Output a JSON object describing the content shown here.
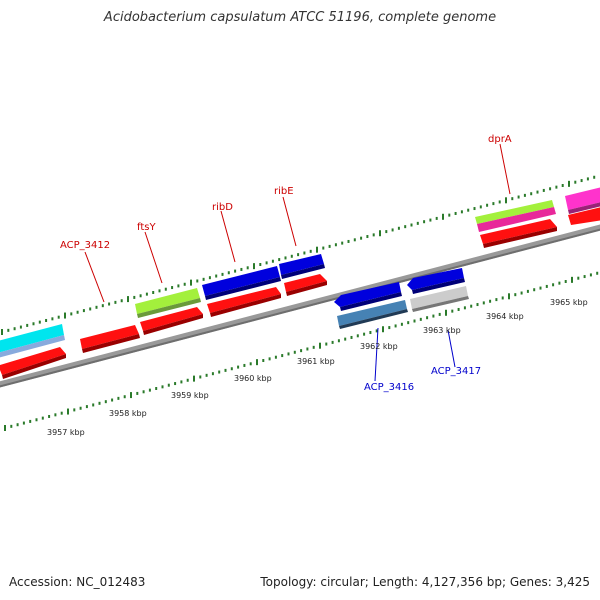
{
  "title": "Acidobacterium capsulatum ATCC 51196, complete genome",
  "footer": {
    "accession": "Accession: NC_012483",
    "summary": "Topology: circular; Length: 4,127,356 bp; Genes: 3,425"
  },
  "colors": {
    "forward_label": "#cc0000",
    "reverse_label": "#0000cc",
    "backbone": "#7a7a7a",
    "ticks": "#2a7a2a"
  },
  "scale_labels": [
    "3957 kbp",
    "3958 kbp",
    "3959 kbp",
    "3960 kbp",
    "3961 kbp",
    "3962 kbp",
    "3963 kbp",
    "3964 kbp",
    "3965 kbp"
  ],
  "gene_labels": [
    {
      "text": "ACP_3412",
      "strand": "forward"
    },
    {
      "text": "ftsY",
      "strand": "forward"
    },
    {
      "text": "ribD",
      "strand": "forward"
    },
    {
      "text": "ribE",
      "strand": "forward"
    },
    {
      "text": "dprA",
      "strand": "forward"
    },
    {
      "text": "ACP_3416",
      "strand": "reverse"
    },
    {
      "text": "ACP_3417",
      "strand": "reverse"
    }
  ]
}
